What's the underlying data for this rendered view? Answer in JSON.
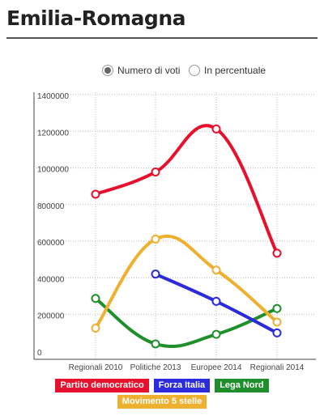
{
  "page": {
    "title": "Emilia-Romagna"
  },
  "mode_toggle": {
    "options": [
      {
        "label": "Numero di voti",
        "selected": true
      },
      {
        "label": "In percentuale",
        "selected": false
      }
    ]
  },
  "chart_data": {
    "type": "line",
    "categories": [
      "Regionali 2010",
      "Politiche 2013",
      "Europee 2014",
      "Regionali 2014"
    ],
    "ylim": [
      0,
      1400000
    ],
    "yticks": [
      0,
      200000,
      400000,
      600000,
      800000,
      1000000,
      1200000,
      1400000
    ],
    "grid": true,
    "legend_position": "bottom",
    "series": [
      {
        "name": "Partito democratico",
        "color": "#e8112d",
        "values": [
          857000,
          978000,
          1213000,
          535000
        ]
      },
      {
        "name": "Forza Italia",
        "color": "#2b2bdc",
        "values": [
          null,
          421000,
          272000,
          100000
        ]
      },
      {
        "name": "Lega Nord",
        "color": "#1f8f2b",
        "values": [
          288000,
          40000,
          92000,
          233000
        ]
      },
      {
        "name": "Movimento 5 stelle",
        "color": "#efb030",
        "values": [
          126000,
          612000,
          443000,
          159000
        ]
      }
    ]
  }
}
